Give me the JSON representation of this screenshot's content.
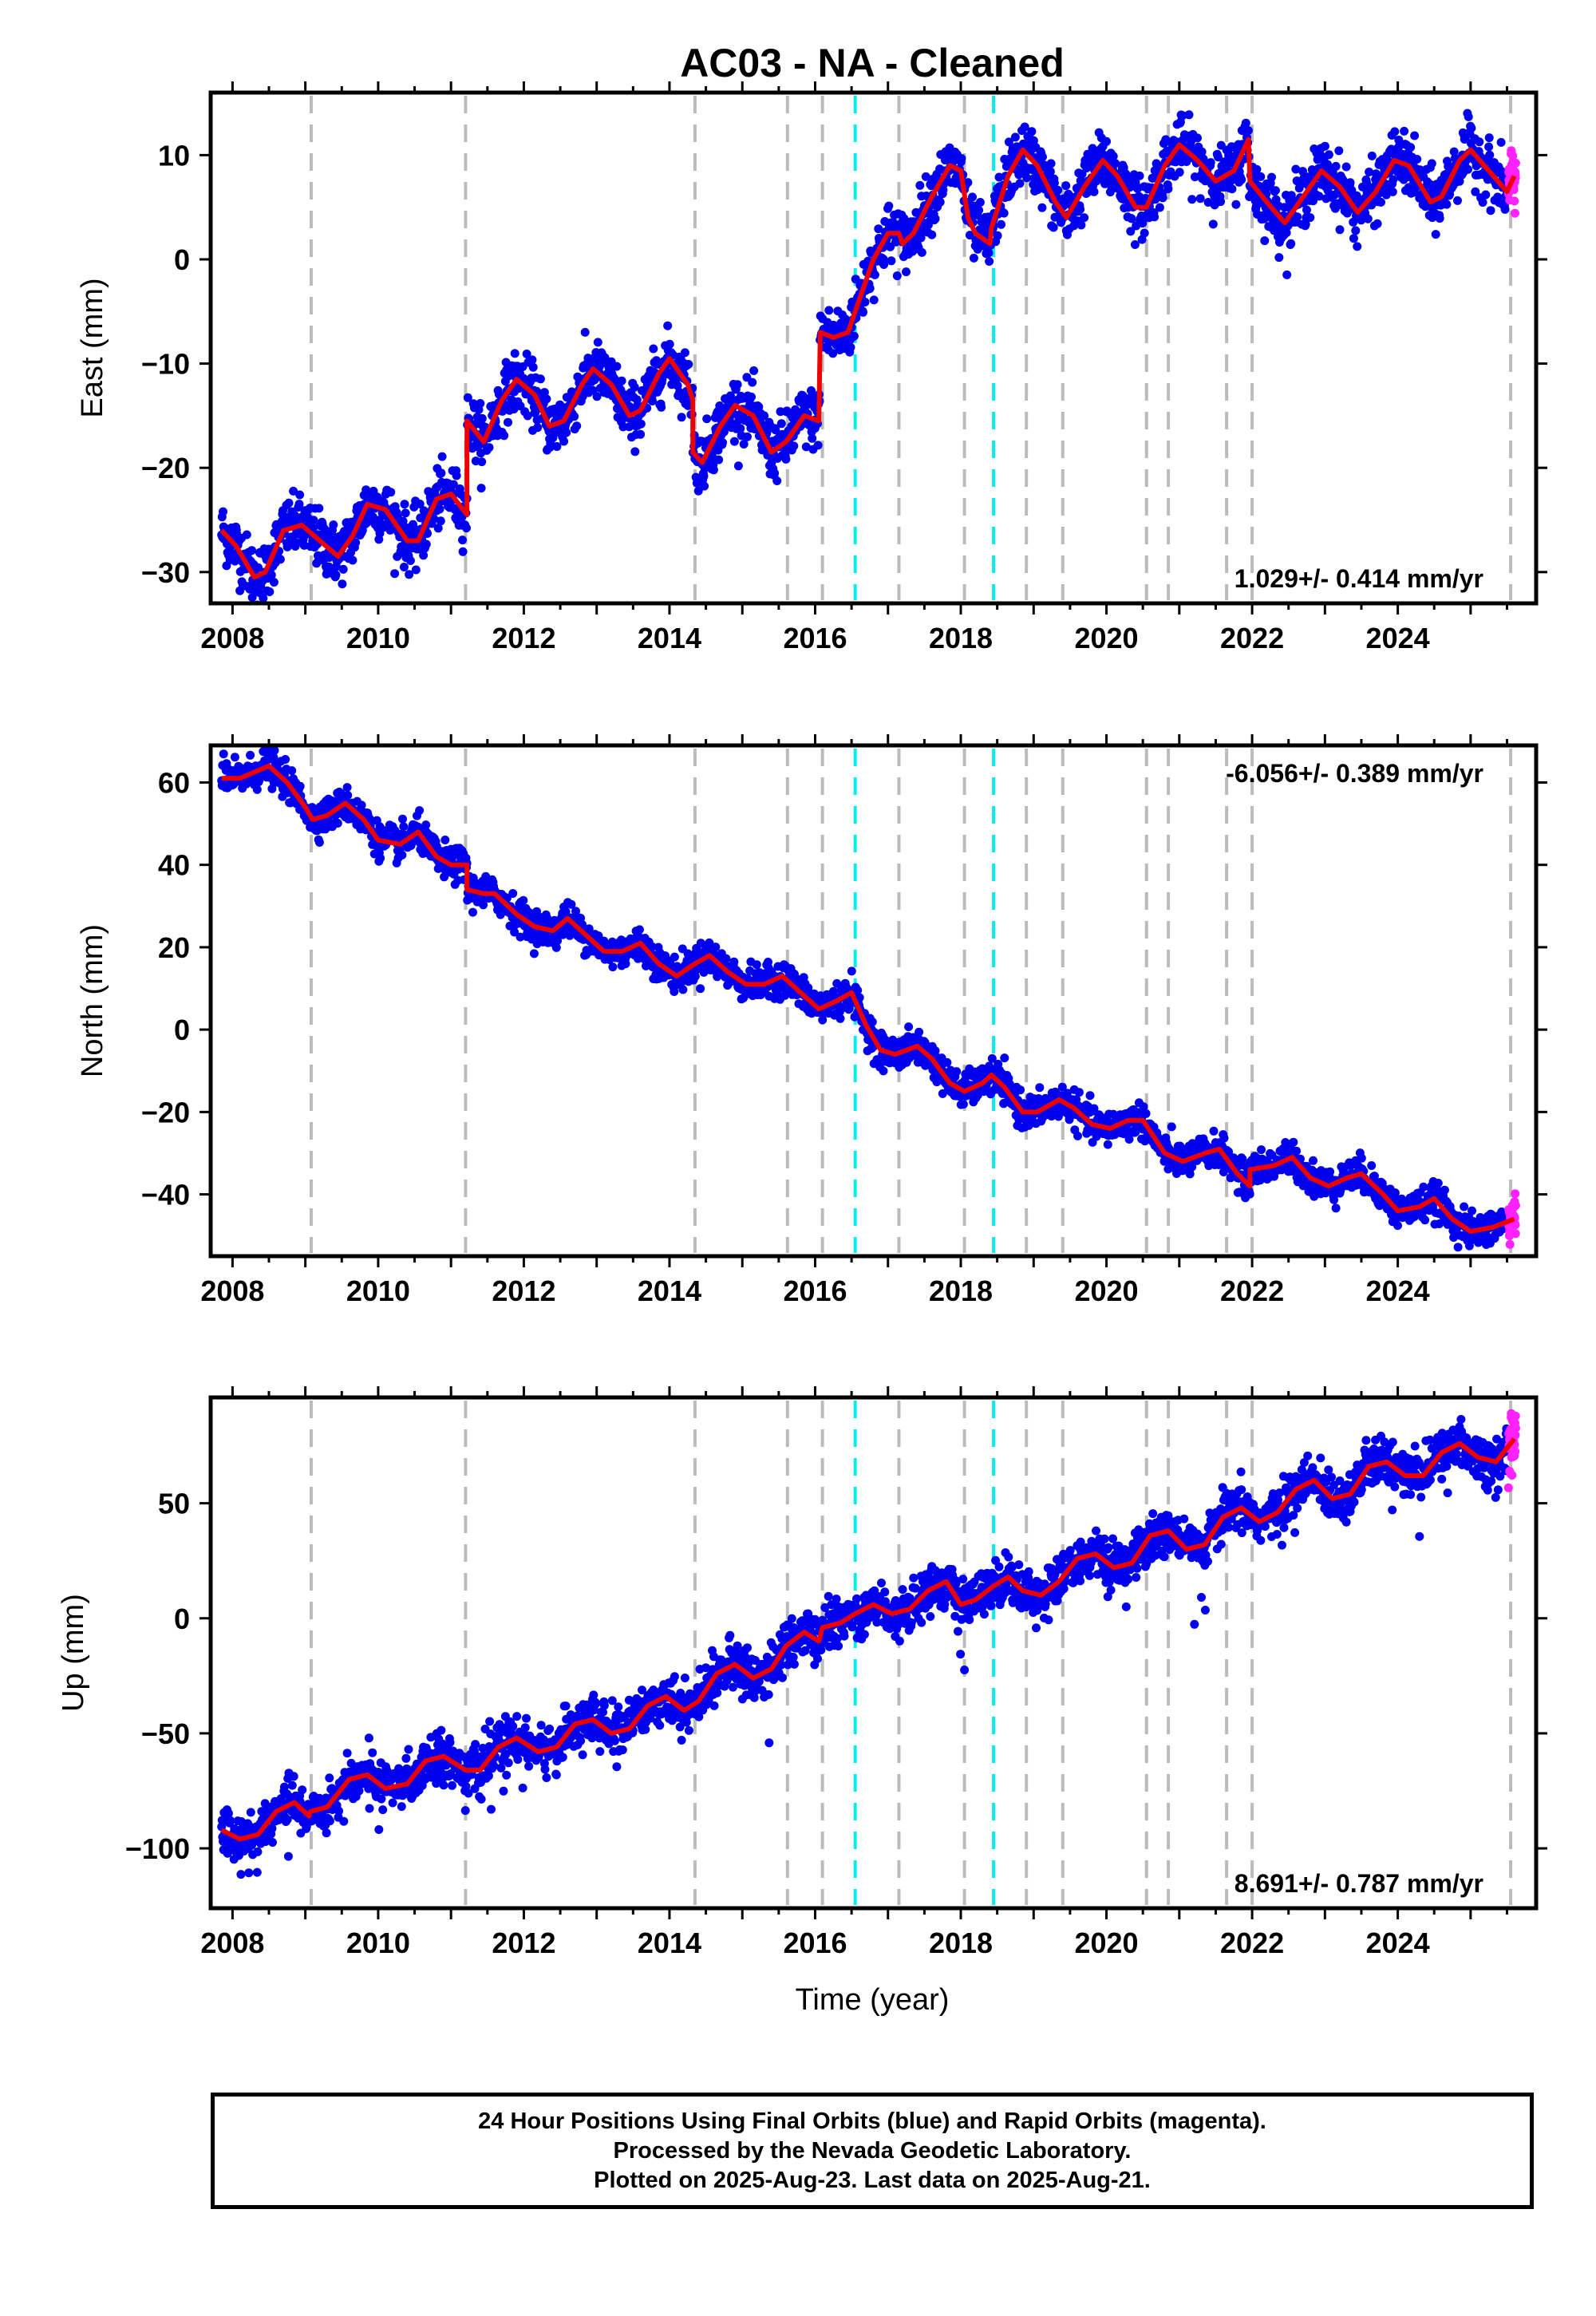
{
  "title": "AC03  - NA - Cleaned",
  "colors": {
    "final": "#0000ee",
    "rapid": "#ff22ff",
    "model": "#ee0000",
    "equipment_change": "#bbbbbb",
    "earthquake": "#00eeee"
  },
  "footer": {
    "line1": "24 Hour Positions Using Final Orbits (blue) and Rapid Orbits (magenta).",
    "line2": "Processed by the Nevada Geodetic Laboratory.",
    "line3": "Plotted on 2025-Aug-23. Last data on 2025-Aug-21."
  },
  "chart_data": [
    {
      "type": "scatter",
      "ylabel": "East (mm)",
      "xlabel": "",
      "xlim": [
        2007.7,
        2025.9
      ],
      "ylim": [
        -33,
        16
      ],
      "xticks": [
        2008,
        2010,
        2012,
        2014,
        2016,
        2018,
        2020,
        2022,
        2024
      ],
      "yticks": [
        -30,
        -20,
        -10,
        0,
        10
      ],
      "ytick_labels": [
        "−30",
        "−20",
        "−10",
        "0",
        "10"
      ],
      "rate_label": "1.029+/- 0.414 mm/yr",
      "rate_position": "bottom-right",
      "model": [
        [
          2007.85,
          -26
        ],
        [
          2008.05,
          -27.5
        ],
        [
          2008.3,
          -30.5
        ],
        [
          2008.45,
          -30
        ],
        [
          2008.7,
          -26
        ],
        [
          2008.95,
          -25.5
        ],
        [
          2009.2,
          -27
        ],
        [
          2009.45,
          -28.5
        ],
        [
          2009.65,
          -26.5
        ],
        [
          2009.85,
          -23.5
        ],
        [
          2010.1,
          -24
        ],
        [
          2010.4,
          -27
        ],
        [
          2010.55,
          -27
        ],
        [
          2010.8,
          -23
        ],
        [
          2011.0,
          -22.5
        ],
        [
          2011.22,
          -24.5
        ],
        [
          2011.22,
          -15.5
        ],
        [
          2011.45,
          -17.5
        ],
        [
          2011.7,
          -13.5
        ],
        [
          2011.9,
          -11.5
        ],
        [
          2012.15,
          -13
        ],
        [
          2012.35,
          -16
        ],
        [
          2012.55,
          -15.5
        ],
        [
          2012.8,
          -12
        ],
        [
          2012.95,
          -10.5
        ],
        [
          2013.2,
          -12
        ],
        [
          2013.45,
          -15
        ],
        [
          2013.6,
          -14.5
        ],
        [
          2013.85,
          -11
        ],
        [
          2014.0,
          -9.5
        ],
        [
          2014.25,
          -12
        ],
        [
          2014.32,
          -13.5
        ],
        [
          2014.32,
          -18.5
        ],
        [
          2014.45,
          -19.5
        ],
        [
          2014.7,
          -16
        ],
        [
          2014.9,
          -14
        ],
        [
          2015.15,
          -15
        ],
        [
          2015.4,
          -18.5
        ],
        [
          2015.6,
          -17.5
        ],
        [
          2015.85,
          -15
        ],
        [
          2016.05,
          -15.5
        ],
        [
          2016.07,
          -7
        ],
        [
          2016.25,
          -7.5
        ],
        [
          2016.45,
          -7
        ],
        [
          2016.6,
          -4
        ],
        [
          2016.8,
          0
        ],
        [
          2017.0,
          2.5
        ],
        [
          2017.15,
          2.5
        ],
        [
          2017.2,
          1.5
        ],
        [
          2017.35,
          2.5
        ],
        [
          2017.6,
          6
        ],
        [
          2017.85,
          9
        ],
        [
          2018.0,
          8.5
        ],
        [
          2018.1,
          4
        ],
        [
          2018.2,
          2.5
        ],
        [
          2018.4,
          1.5
        ],
        [
          2018.42,
          3
        ],
        [
          2018.65,
          8
        ],
        [
          2018.85,
          10.5
        ],
        [
          2019.05,
          9
        ],
        [
          2019.3,
          5.5
        ],
        [
          2019.45,
          4
        ],
        [
          2019.7,
          7
        ],
        [
          2019.95,
          9.5
        ],
        [
          2020.15,
          8
        ],
        [
          2020.4,
          5
        ],
        [
          2020.55,
          5
        ],
        [
          2020.8,
          9
        ],
        [
          2021.0,
          11
        ],
        [
          2021.25,
          9.5
        ],
        [
          2021.5,
          7.5
        ],
        [
          2021.75,
          8.5
        ],
        [
          2021.95,
          11.5
        ],
        [
          2021.97,
          7.5
        ],
        [
          2022.2,
          5.5
        ],
        [
          2022.45,
          3.5
        ],
        [
          2022.75,
          6.5
        ],
        [
          2022.95,
          8.5
        ],
        [
          2023.2,
          7
        ],
        [
          2023.45,
          4.5
        ],
        [
          2023.7,
          6.5
        ],
        [
          2023.95,
          9.5
        ],
        [
          2024.15,
          9
        ],
        [
          2024.45,
          5.5
        ],
        [
          2024.6,
          6
        ],
        [
          2024.85,
          9.5
        ],
        [
          2025.0,
          10.5
        ],
        [
          2025.25,
          8.5
        ],
        [
          2025.5,
          6.5
        ],
        [
          2025.6,
          8
        ]
      ]
    },
    {
      "type": "scatter",
      "ylabel": "North (mm)",
      "xlabel": "",
      "xlim": [
        2007.7,
        2025.9
      ],
      "ylim": [
        -55,
        69
      ],
      "xticks": [
        2008,
        2010,
        2012,
        2014,
        2016,
        2018,
        2020,
        2022,
        2024
      ],
      "yticks": [
        -40,
        -20,
        0,
        20,
        40,
        60
      ],
      "ytick_labels": [
        "−40",
        "−20",
        "0",
        "20",
        "40",
        "60"
      ],
      "rate_label": "-6.056+/- 0.389 mm/yr",
      "rate_position": "top-right",
      "model": [
        [
          2007.85,
          61
        ],
        [
          2008.1,
          61
        ],
        [
          2008.5,
          64
        ],
        [
          2008.75,
          60
        ],
        [
          2009.0,
          54
        ],
        [
          2009.1,
          51
        ],
        [
          2009.3,
          52
        ],
        [
          2009.55,
          55
        ],
        [
          2009.8,
          51
        ],
        [
          2010.0,
          46
        ],
        [
          2010.3,
          45
        ],
        [
          2010.55,
          48
        ],
        [
          2010.8,
          42
        ],
        [
          2011.0,
          40
        ],
        [
          2011.22,
          40
        ],
        [
          2011.22,
          34
        ],
        [
          2011.45,
          33
        ],
        [
          2011.6,
          33
        ],
        [
          2011.9,
          28
        ],
        [
          2012.15,
          25
        ],
        [
          2012.4,
          24
        ],
        [
          2012.6,
          27
        ],
        [
          2012.85,
          23
        ],
        [
          2013.1,
          19
        ],
        [
          2013.35,
          19
        ],
        [
          2013.6,
          21
        ],
        [
          2013.85,
          16
        ],
        [
          2014.1,
          13
        ],
        [
          2014.35,
          16
        ],
        [
          2014.55,
          18
        ],
        [
          2014.8,
          14
        ],
        [
          2015.05,
          11
        ],
        [
          2015.3,
          11
        ],
        [
          2015.55,
          13
        ],
        [
          2015.8,
          9
        ],
        [
          2016.05,
          5
        ],
        [
          2016.3,
          7
        ],
        [
          2016.5,
          9
        ],
        [
          2016.7,
          1
        ],
        [
          2016.9,
          -5
        ],
        [
          2017.1,
          -6
        ],
        [
          2017.4,
          -4
        ],
        [
          2017.6,
          -7
        ],
        [
          2017.85,
          -13
        ],
        [
          2018.05,
          -15
        ],
        [
          2018.3,
          -13
        ],
        [
          2018.42,
          -11
        ],
        [
          2018.6,
          -14
        ],
        [
          2018.85,
          -20
        ],
        [
          2019.05,
          -20
        ],
        [
          2019.35,
          -17
        ],
        [
          2019.55,
          -19
        ],
        [
          2019.8,
          -23
        ],
        [
          2020.05,
          -24
        ],
        [
          2020.3,
          -22
        ],
        [
          2020.5,
          -22
        ],
        [
          2020.8,
          -30
        ],
        [
          2021.05,
          -32
        ],
        [
          2021.35,
          -30
        ],
        [
          2021.55,
          -29
        ],
        [
          2021.8,
          -35
        ],
        [
          2021.97,
          -38
        ],
        [
          2021.97,
          -34
        ],
        [
          2022.3,
          -33
        ],
        [
          2022.55,
          -31
        ],
        [
          2022.8,
          -36
        ],
        [
          2023.05,
          -38
        ],
        [
          2023.3,
          -36
        ],
        [
          2023.5,
          -35
        ],
        [
          2023.8,
          -40
        ],
        [
          2024.0,
          -44
        ],
        [
          2024.3,
          -43
        ],
        [
          2024.5,
          -41
        ],
        [
          2024.75,
          -46
        ],
        [
          2025.0,
          -49
        ],
        [
          2025.3,
          -48
        ],
        [
          2025.6,
          -46
        ]
      ]
    },
    {
      "type": "scatter",
      "ylabel": "Up (mm)",
      "xlabel": "Time (year)",
      "xlim": [
        2007.7,
        2025.9
      ],
      "ylim": [
        -126,
        96
      ],
      "xticks": [
        2008,
        2010,
        2012,
        2014,
        2016,
        2018,
        2020,
        2022,
        2024
      ],
      "yticks": [
        -100,
        -50,
        0,
        50
      ],
      "ytick_labels": [
        "−100",
        "−50",
        "0",
        "50"
      ],
      "rate_label": "8.691+/- 0.787 mm/yr",
      "rate_position": "bottom-right",
      "model": [
        [
          2007.85,
          -92
        ],
        [
          2008.1,
          -96
        ],
        [
          2008.35,
          -94
        ],
        [
          2008.6,
          -84
        ],
        [
          2008.85,
          -80
        ],
        [
          2009.05,
          -86
        ],
        [
          2009.07,
          -84
        ],
        [
          2009.3,
          -82
        ],
        [
          2009.6,
          -70
        ],
        [
          2009.85,
          -68
        ],
        [
          2010.1,
          -74
        ],
        [
          2010.4,
          -72
        ],
        [
          2010.65,
          -62
        ],
        [
          2010.9,
          -60
        ],
        [
          2011.2,
          -66
        ],
        [
          2011.4,
          -66
        ],
        [
          2011.65,
          -56
        ],
        [
          2011.9,
          -52
        ],
        [
          2012.2,
          -58
        ],
        [
          2012.45,
          -56
        ],
        [
          2012.7,
          -46
        ],
        [
          2012.95,
          -44
        ],
        [
          2013.2,
          -50
        ],
        [
          2013.45,
          -48
        ],
        [
          2013.7,
          -38
        ],
        [
          2013.95,
          -34
        ],
        [
          2014.2,
          -40
        ],
        [
          2014.4,
          -36
        ],
        [
          2014.65,
          -24
        ],
        [
          2014.9,
          -20
        ],
        [
          2015.15,
          -26
        ],
        [
          2015.4,
          -22
        ],
        [
          2015.6,
          -12
        ],
        [
          2015.85,
          -6
        ],
        [
          2016.05,
          -10
        ],
        [
          2016.1,
          -4
        ],
        [
          2016.35,
          -2
        ],
        [
          2016.55,
          2
        ],
        [
          2016.8,
          6
        ],
        [
          2017.05,
          2
        ],
        [
          2017.3,
          4
        ],
        [
          2017.55,
          12
        ],
        [
          2017.8,
          16
        ],
        [
          2018.0,
          6
        ],
        [
          2018.2,
          8
        ],
        [
          2018.45,
          14
        ],
        [
          2018.65,
          18
        ],
        [
          2018.85,
          12
        ],
        [
          2019.1,
          10
        ],
        [
          2019.35,
          16
        ],
        [
          2019.6,
          26
        ],
        [
          2019.85,
          28
        ],
        [
          2020.1,
          22
        ],
        [
          2020.35,
          24
        ],
        [
          2020.6,
          36
        ],
        [
          2020.85,
          38
        ],
        [
          2021.1,
          30
        ],
        [
          2021.35,
          32
        ],
        [
          2021.6,
          44
        ],
        [
          2021.85,
          48
        ],
        [
          2022.1,
          42
        ],
        [
          2022.35,
          46
        ],
        [
          2022.6,
          56
        ],
        [
          2022.85,
          60
        ],
        [
          2023.1,
          52
        ],
        [
          2023.35,
          54
        ],
        [
          2023.6,
          66
        ],
        [
          2023.85,
          68
        ],
        [
          2024.1,
          62
        ],
        [
          2024.35,
          62
        ],
        [
          2024.6,
          72
        ],
        [
          2024.85,
          76
        ],
        [
          2025.1,
          70
        ],
        [
          2025.35,
          68
        ],
        [
          2025.6,
          78
        ]
      ]
    }
  ],
  "equipment_changes": [
    2009.08,
    2011.2,
    2014.35,
    2015.62,
    2016.1,
    2017.15,
    2018.05,
    2018.9,
    2019.4,
    2020.55,
    2020.85,
    2021.65,
    2022.0,
    2025.55
  ],
  "earthquakes": [
    2016.55,
    2018.45
  ]
}
